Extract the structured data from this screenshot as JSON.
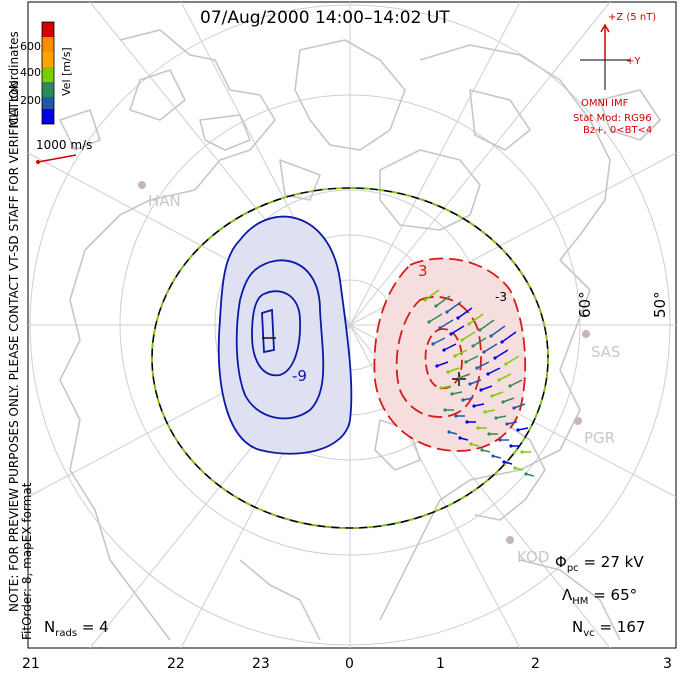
{
  "title": "07/Aug/2000 14:00–14:02 UT",
  "side_text": {
    "coords": "MLT coordinates",
    "preview_note": "NOTE: FOR PREVIEW PURPOSES ONLY. PLEASE CONTACT VT-SD STAFF FOR VERIFICATION.",
    "fit_order": "FitOrder: 8, mapEX format"
  },
  "velocity_scale": {
    "label": "Vel [m/s]",
    "ticks": [
      "600",
      "400",
      "200"
    ],
    "colors": [
      "#d40000",
      "#ff8c00",
      "#ffa500",
      "#7ccd00",
      "#2e8b57",
      "#1e5aa8",
      "#0000e6"
    ],
    "reference_vector": "1000 m/s"
  },
  "imf": {
    "z_label": "+Z (5 nT)",
    "y_label": "+Y",
    "source": "OMNI IMF",
    "stat_mod": "Stat Mod: RG96",
    "condition": "Bz+, 0<BT<4"
  },
  "sites": [
    "HAN",
    "SAS",
    "PGR",
    "KOD"
  ],
  "latitude_labels": [
    "60°",
    "50°"
  ],
  "mlt_hours": [
    "21",
    "22",
    "23",
    "0",
    "1",
    "2",
    "3"
  ],
  "contour_labels": [
    "-9",
    "3",
    "-3"
  ],
  "stats": {
    "phi_symbol": "Φ",
    "phi_sub": "pc",
    "phi_value": "= 27 kV",
    "lambda_symbol": "Λ",
    "lambda_sub": "HM",
    "lambda_value": "= 65°",
    "nvc_symbol": "N",
    "nvc_sub": "vc",
    "nvc_value": "= 167",
    "nrads_symbol": "N",
    "nrads_sub": "rads",
    "nrads_value": "= 4"
  },
  "colors": {
    "negative_cell": "#0a1aa6",
    "negative_fill": "#dfe1f3",
    "positive_cell": "#d61a1a",
    "positive_fill": "#f7dede",
    "coast": "#c6c6c6",
    "grid": "#cfcfcf"
  }
}
